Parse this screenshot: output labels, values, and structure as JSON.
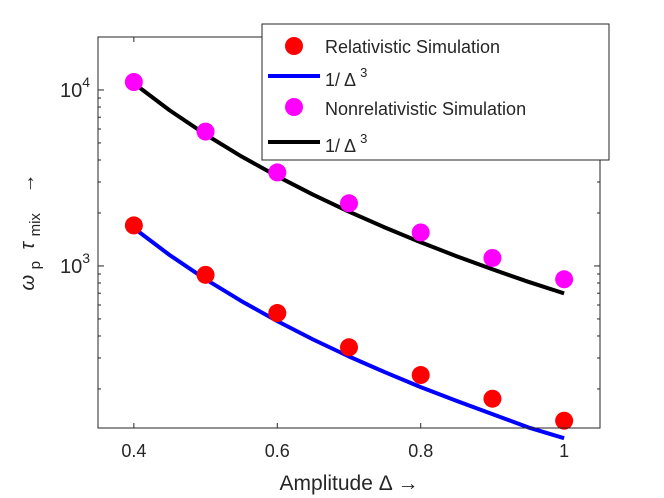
{
  "chart_data": {
    "type": "scatter",
    "xlabel": "Amplitude   Δ →",
    "ylabel_parts": {
      "omega": "ω",
      "omega_sub": "p",
      "tau": "τ",
      "tau_sub": "mix",
      "arrow": "→"
    },
    "xlim": [
      0.35,
      1.05
    ],
    "ylim": [
      120,
      20000
    ],
    "yscale": "log",
    "x_ticks": [
      {
        "value": 0.4,
        "label": "0.4"
      },
      {
        "value": 0.6,
        "label": "0.6"
      },
      {
        "value": 0.8,
        "label": "0.8"
      },
      {
        "value": 1.0,
        "label": "1"
      }
    ],
    "y_ticks": [
      {
        "value": 1000,
        "base": "10",
        "exp": "3"
      },
      {
        "value": 10000,
        "base": "10",
        "exp": "4"
      }
    ],
    "series": [
      {
        "name": "Relativistic Simulation",
        "kind": "markers",
        "color": "#ff0000",
        "x": [
          0.4,
          0.5,
          0.6,
          0.7,
          0.8,
          0.9,
          1.0
        ],
        "y": [
          1700,
          890,
          540,
          345,
          240,
          176,
          132
        ]
      },
      {
        "name": "1/ Δ",
        "name_sup": "3",
        "kind": "line",
        "color": "#0000ff",
        "x": [
          0.4,
          0.45,
          0.5,
          0.55,
          0.6,
          0.65,
          0.7,
          0.75,
          0.8,
          0.85,
          0.9,
          0.95,
          1.0
        ],
        "y": [
          1640,
          1152,
          840,
          631,
          486,
          382,
          306,
          249,
          205,
          171,
          144,
          121,
          105
        ]
      },
      {
        "name": "Nonrelativistic Simulation",
        "kind": "markers",
        "color": "#ff00ff",
        "x": [
          0.4,
          0.5,
          0.6,
          0.7,
          0.8,
          0.9,
          1.0
        ],
        "y": [
          11100,
          5800,
          3400,
          2270,
          1550,
          1110,
          840
        ]
      },
      {
        "name": "1/ Δ",
        "name_sup": "3",
        "kind": "line",
        "color": "#000000",
        "x": [
          0.4,
          0.45,
          0.5,
          0.55,
          0.6,
          0.65,
          0.7,
          0.75,
          0.8,
          0.85,
          0.9,
          0.95,
          1.0
        ],
        "y": [
          10900,
          7655,
          5581,
          4193,
          3230,
          2540,
          2034,
          1654,
          1363,
          1136,
          957,
          813,
          698
        ]
      }
    ],
    "legend_position": "top-right"
  }
}
